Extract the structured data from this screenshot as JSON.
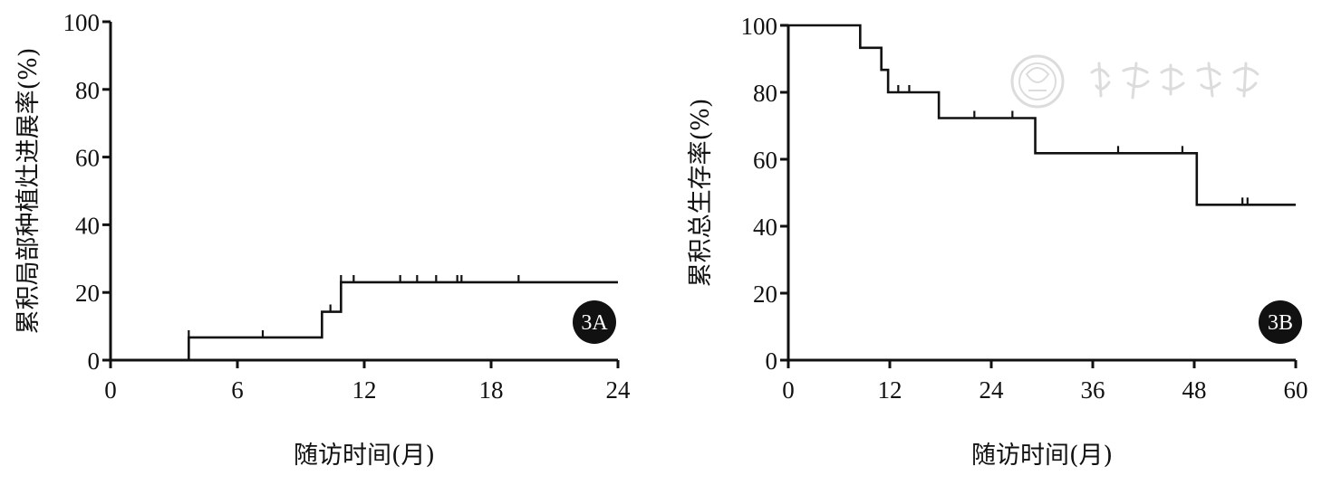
{
  "chart_data": [
    {
      "id": "A",
      "type": "line",
      "step": true,
      "badge": "3A",
      "xlabel": "随访时间(月)",
      "ylabel": "累积局部种植灶进展率(%)",
      "xlim": [
        0,
        24
      ],
      "ylim": [
        0,
        100
      ],
      "xticks": [
        0,
        6,
        12,
        18,
        24
      ],
      "yticks": [
        0,
        20,
        40,
        60,
        80,
        100
      ],
      "series": [
        {
          "x": [
            0,
            3.7,
            10.0,
            10.9,
            24
          ],
          "y": [
            0,
            6.7,
            14.3,
            23.0,
            23.0
          ]
        }
      ],
      "censors": [
        {
          "x": 3.7,
          "y": 6.7
        },
        {
          "x": 7.2,
          "y": 6.7
        },
        {
          "x": 10.4,
          "y": 14.3
        },
        {
          "x": 10.9,
          "y": 23.0
        },
        {
          "x": 11.5,
          "y": 23.0
        },
        {
          "x": 13.7,
          "y": 23.0
        },
        {
          "x": 14.5,
          "y": 23.0
        },
        {
          "x": 15.4,
          "y": 23.0
        },
        {
          "x": 16.4,
          "y": 23.0
        },
        {
          "x": 16.6,
          "y": 23.0
        },
        {
          "x": 19.3,
          "y": 23.0
        }
      ],
      "grid": false,
      "legend": "none"
    },
    {
      "id": "B",
      "type": "line",
      "step": true,
      "badge": "3B",
      "xlabel": "随访时间(月)",
      "ylabel": "累积总生存率(%)",
      "xlim": [
        0,
        60
      ],
      "ylim": [
        0,
        100
      ],
      "xticks": [
        0,
        12,
        24,
        36,
        48,
        60
      ],
      "yticks": [
        0,
        20,
        40,
        60,
        80,
        100
      ],
      "series": [
        {
          "x": [
            0,
            8.5,
            11.0,
            11.8,
            17.8,
            29.2,
            48.3,
            60
          ],
          "y": [
            100,
            93.3,
            86.7,
            80.0,
            72.3,
            61.8,
            46.4,
            46.4
          ]
        }
      ],
      "censors": [
        {
          "x": 13.0,
          "y": 80.0
        },
        {
          "x": 14.3,
          "y": 80.0
        },
        {
          "x": 22.0,
          "y": 72.3
        },
        {
          "x": 26.5,
          "y": 72.3
        },
        {
          "x": 39.0,
          "y": 61.8
        },
        {
          "x": 46.6,
          "y": 61.8
        },
        {
          "x": 53.7,
          "y": 46.4
        },
        {
          "x": 54.3,
          "y": 46.4
        }
      ],
      "grid": false,
      "legend": "none"
    }
  ]
}
